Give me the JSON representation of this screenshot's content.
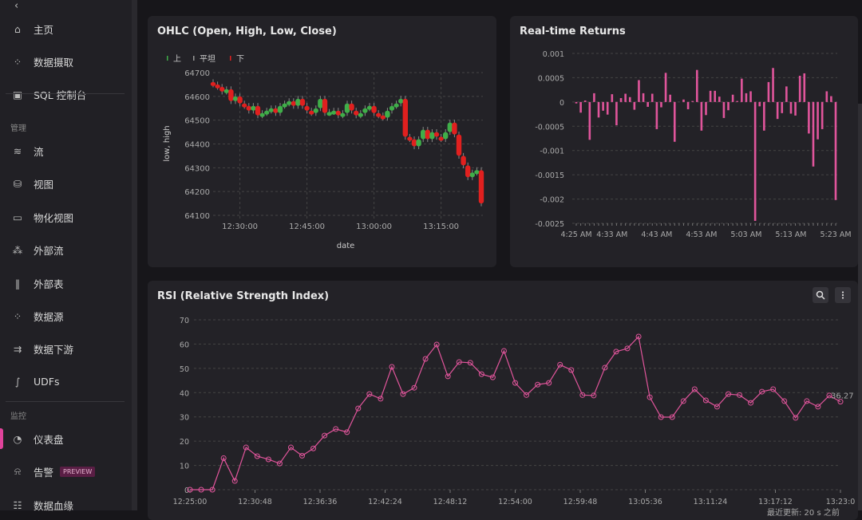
{
  "sidebar": {
    "collapse_icon": "chevron-left-icon",
    "items": [
      {
        "label": "主页",
        "icon": "home-icon"
      },
      {
        "label": "数据摄取",
        "icon": "ingest-icon"
      },
      {
        "label": "SQL 控制台",
        "icon": "console-icon"
      },
      {
        "label": "流",
        "icon": "stream-icon"
      },
      {
        "label": "视图",
        "icon": "view-icon"
      },
      {
        "label": "物化视图",
        "icon": "materialized-view-icon"
      },
      {
        "label": "外部流",
        "icon": "external-stream-icon"
      },
      {
        "label": "外部表",
        "icon": "external-table-icon"
      },
      {
        "label": "数据源",
        "icon": "source-icon"
      },
      {
        "label": "数据下游",
        "icon": "sink-icon"
      },
      {
        "label": "UDFs",
        "icon": "function-icon"
      },
      {
        "label": "仪表盘",
        "icon": "dashboard-icon",
        "active": true
      },
      {
        "label": "告警",
        "icon": "alert-icon",
        "badge": "PREVIEW"
      },
      {
        "label": "数据血缘",
        "icon": "lineage-icon"
      }
    ],
    "sections": {
      "manage": "管理",
      "monitor": "监控"
    }
  },
  "colors": {
    "accent": "#e0439b",
    "up": "#3fae49",
    "down": "#e0201f",
    "flat": "#999999",
    "line": "#e0559b"
  },
  "footer": {
    "last_updated": "最近更新: 20 s 之前"
  },
  "chart_data": [
    {
      "type": "candlestick",
      "title": "OHLC (Open, High, Low, Close)",
      "xlabel": "date",
      "ylabel": "low, high",
      "legend": [
        "上",
        "平坦",
        "下"
      ],
      "legend_placement": "top-left",
      "ylim": [
        64100,
        64700
      ],
      "yticks": [
        64700,
        64600,
        64500,
        64400,
        64300,
        64200,
        64100
      ],
      "xticks": [
        "12:30:00",
        "12:45:00",
        "13:00:00",
        "13:15:00"
      ],
      "xtick_minutes": [
        6,
        21,
        36,
        51
      ],
      "start_open": 64660,
      "interval": "1 min",
      "start_time": "12:24:00",
      "close": [
        64650,
        64640,
        64620,
        64630,
        64580,
        64600,
        64570,
        64560,
        64540,
        64560,
        64520,
        64530,
        64540,
        64550,
        64530,
        64560,
        64570,
        64580,
        64560,
        64590,
        64560,
        64540,
        64530,
        64550,
        64590,
        64530,
        64535,
        64540,
        64520,
        64530,
        64570,
        64540,
        64520,
        64530,
        64550,
        64560,
        64530,
        64520,
        64510,
        64540,
        64560,
        64570,
        64590,
        64430,
        64420,
        64390,
        64420,
        64460,
        64420,
        64450,
        64430,
        64420,
        64450,
        64490,
        64440,
        64350,
        64310,
        64260,
        64280,
        64290,
        64150
      ]
    },
    {
      "type": "bar",
      "title": "Real-time Returns",
      "ylim": [
        -0.0025,
        0.001
      ],
      "yticks": [
        "0.001",
        "0.0005",
        "0",
        "-0.0005",
        "-0.001",
        "-0.0015",
        "-0.002",
        "-0.0025"
      ],
      "xticks": [
        "4:25 AM",
        "4:33 AM",
        "4:43 AM",
        "4:53 AM",
        "5:03 AM",
        "5:13 AM",
        "5:23 AM"
      ],
      "xtick_index": [
        0,
        8,
        18,
        28,
        38,
        48,
        58
      ],
      "values": [
        -3e-05,
        -0.00022,
        3e-05,
        -0.00078,
        0.00018,
        -0.00032,
        -0.00018,
        -0.00026,
        0.00016,
        -0.00048,
        8e-05,
        0.00017,
        0.0001,
        -0.00016,
        0.00045,
        0.00018,
        -0.0001,
        0.00017,
        -0.00056,
        -0.00011,
        0.0006,
        0.00015,
        -0.00082,
        0,
        5e-05,
        -0.00015,
        2e-05,
        0.00066,
        -0.00059,
        -0.00027,
        0.00023,
        0.00023,
        0.00011,
        -0.00033,
        -0.00017,
        0.00015,
        2e-05,
        0.00048,
        0.00018,
        0.00022,
        -0.00245,
        -9e-05,
        -0.00059,
        0.00041,
        0.0007,
        -0.00035,
        -0.00023,
        0.00032,
        -0.00024,
        -0.00028,
        0.00054,
        0.00059,
        -0.00065,
        -0.00133,
        -0.00077,
        -0.00056,
        0.00022,
        0.00012,
        -0.00202
      ]
    },
    {
      "type": "line",
      "title": "RSI (Relative Strength Index)",
      "ylim": [
        0,
        70
      ],
      "yticks": [
        70,
        60,
        50,
        40,
        30,
        20,
        10,
        0
      ],
      "xticks": [
        "12:25:00",
        "12:30:48",
        "12:36:36",
        "12:42:24",
        "12:48:12",
        "12:54:00",
        "12:59:48",
        "13:05:36",
        "13:11:24",
        "13:17:12",
        "13:23:0"
      ],
      "last_label": "36.27",
      "values": [
        0,
        0,
        0,
        13,
        3.6,
        17.4,
        13.8,
        12.5,
        10.8,
        17.4,
        14,
        17,
        22.3,
        25,
        23.7,
        33.5,
        39.4,
        37.5,
        50.6,
        39.4,
        42,
        53.9,
        59.8,
        46.7,
        52.6,
        52.3,
        47.6,
        46.3,
        57.2,
        44,
        39,
        43.3,
        44,
        51.5,
        49.3,
        39,
        38.8,
        50.3,
        56.9,
        58.2,
        63.1,
        38.1,
        29.9,
        29.9,
        36.5,
        41.4,
        36.8,
        34.2,
        39.4,
        39,
        35.8,
        40.4,
        41.4,
        36.5,
        29.6,
        36.5,
        34.2,
        38.8,
        36.27
      ]
    }
  ]
}
